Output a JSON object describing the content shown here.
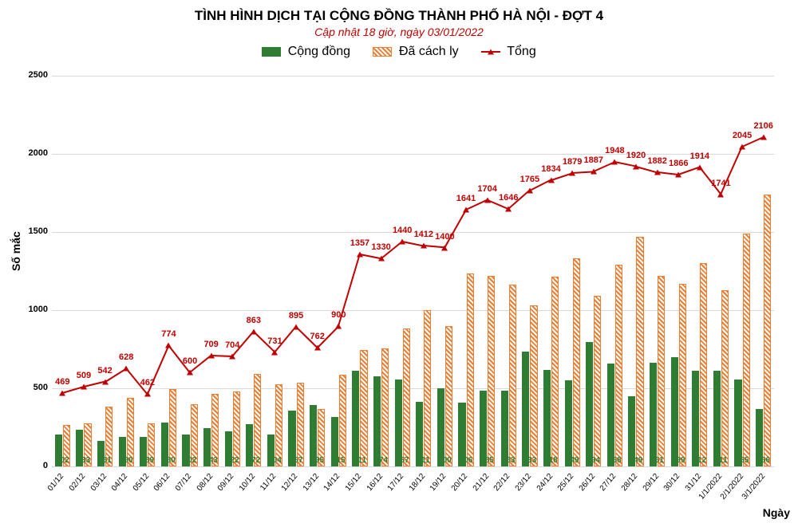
{
  "chart": {
    "type": "bar-line-combo",
    "title": "TÌNH HÌNH DỊCH TẠI CỘNG ĐỒNG THÀNH PHỐ HÀ NỘI - ĐỢT 4",
    "title_fontsize": 17,
    "subtitle": "Cập nhật 18 giờ, ngày 03/01/2022",
    "subtitle_fontsize": 14,
    "subtitle_color": "#c00000",
    "background_color": "#ffffff",
    "grid_color": "#d9d9d9",
    "ylabel": "Số mắc",
    "xlabel": "Ngày",
    "label_fontsize": 14,
    "ylim": [
      0,
      2500
    ],
    "ytick_step": 500,
    "yticks": [
      0,
      500,
      1000,
      1500,
      2000,
      2500
    ],
    "legend": {
      "items": [
        {
          "label": "Cộng đồng",
          "type": "bar-solid",
          "color": "#2e7d32"
        },
        {
          "label": "Đã cách ly",
          "type": "bar-hatch",
          "color": "#ed7d31"
        },
        {
          "label": "Tổng",
          "type": "line-triangle",
          "color": "#c00000"
        }
      ]
    },
    "categories": [
      "01/12",
      "02/12",
      "03/12",
      "04/12",
      "05/12",
      "06/12",
      "07/12",
      "08/12",
      "09/12",
      "10/12",
      "11/12",
      "12/12",
      "13/12",
      "14/12",
      "15/12",
      "16/12",
      "17/12",
      "18/12",
      "19/12",
      "20/12",
      "21/12",
      "22/12",
      "23/12",
      "24/12",
      "25/12",
      "26/12",
      "27/12",
      "28/12",
      "29/12",
      "30/12",
      "31/12",
      "1/1/2022",
      "2/1/2022",
      "3/1/2022"
    ],
    "series_green": {
      "name": "Cộng đồng",
      "color": "#2e7d32",
      "values": [
        202,
        233,
        161,
        190,
        189,
        280,
        202,
        243,
        222,
        272,
        204,
        357,
        395,
        315,
        611,
        574,
        557,
        411,
        500,
        406,
        485,
        483,
        733,
        618,
        549,
        794,
        658,
        449,
        661,
        699,
        612,
        611,
        555,
        366
      ]
    },
    "series_orange": {
      "name": "Đã cách ly",
      "color": "#ed7d31",
      "values": [
        267,
        276,
        381,
        438,
        273,
        494,
        398,
        466,
        482,
        591,
        527,
        538,
        367,
        585,
        746,
        756,
        883,
        1001,
        900,
        1235,
        1219,
        1163,
        1032,
        1216,
        1330,
        1093,
        1290,
        1471,
        1221,
        1167,
        1302,
        1130,
        1490,
        1740
      ]
    },
    "series_line": {
      "name": "Tổng",
      "color": "#c00000",
      "marker": "triangle",
      "values": [
        469,
        509,
        542,
        628,
        462,
        774,
        600,
        709,
        704,
        863,
        731,
        895,
        762,
        900,
        1357,
        1330,
        1440,
        1412,
        1400,
        1641,
        1704,
        1646,
        1765,
        1834,
        1879,
        1887,
        1948,
        1920,
        1882,
        1866,
        1914,
        1741,
        2045,
        2106
      ]
    },
    "bar_width_ratio": 0.38,
    "tick_fontsize": 11,
    "data_label_fontsize": 10
  }
}
